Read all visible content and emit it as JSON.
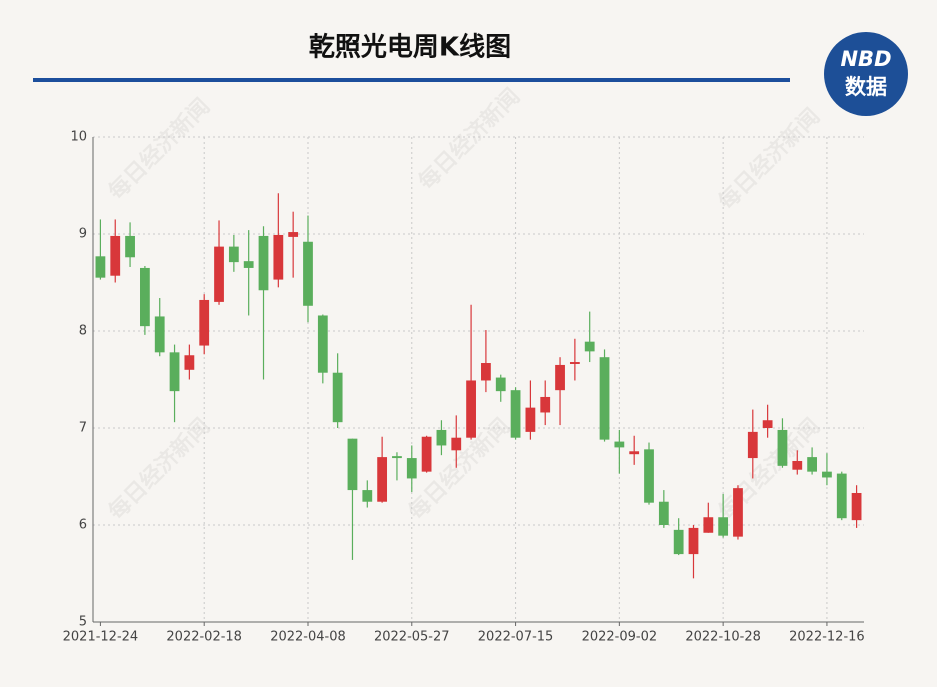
{
  "header": {
    "title": "乾照光电周K线图",
    "logo_top": "NBD",
    "logo_bottom": "数据",
    "watermark": "每日经济新闻"
  },
  "chart_data": {
    "type": "candlestick",
    "categories": [
      "2021-12-24",
      null,
      null,
      null,
      null,
      null,
      null,
      "2022-02-18",
      null,
      null,
      null,
      null,
      null,
      null,
      "2022-04-08",
      null,
      null,
      null,
      null,
      null,
      null,
      "2022-05-27",
      null,
      null,
      null,
      null,
      null,
      null,
      "2022-07-15",
      null,
      null,
      null,
      null,
      null,
      null,
      "2022-09-02",
      null,
      null,
      null,
      null,
      null,
      null,
      "2022-10-28",
      null,
      null,
      null,
      null,
      null,
      null,
      "2022-12-16",
      null,
      null
    ],
    "open": [
      8.77,
      8.57,
      8.98,
      8.65,
      8.15,
      7.78,
      7.6,
      7.85,
      8.3,
      8.87,
      8.72,
      8.98,
      8.53,
      8.97,
      8.92,
      8.16,
      7.57,
      6.89,
      6.36,
      6.24,
      6.71,
      6.69,
      6.55,
      6.98,
      6.77,
      6.9,
      7.49,
      7.52,
      7.39,
      6.96,
      7.16,
      7.39,
      7.66,
      7.89,
      7.73,
      6.86,
      6.73,
      6.78,
      6.24,
      5.95,
      5.7,
      5.92,
      6.08,
      5.88,
      6.69,
      7.0,
      6.98,
      6.57,
      6.7,
      6.55,
      6.53,
      6.05
    ],
    "high": [
      9.15,
      9.15,
      9.12,
      8.67,
      8.34,
      7.86,
      7.86,
      8.38,
      9.14,
      8.99,
      9.04,
      9.08,
      9.42,
      9.23,
      9.19,
      8.17,
      7.77,
      6.89,
      6.46,
      6.91,
      6.75,
      6.82,
      6.92,
      7.08,
      7.13,
      8.27,
      8.01,
      7.55,
      7.42,
      7.49,
      7.49,
      7.73,
      7.92,
      8.2,
      7.81,
      6.98,
      6.92,
      6.85,
      6.36,
      6.07,
      6.0,
      6.23,
      6.32,
      6.41,
      7.19,
      7.24,
      7.1,
      6.77,
      6.8,
      6.74,
      6.55,
      6.41
    ],
    "low": [
      8.53,
      8.5,
      8.66,
      7.96,
      7.74,
      7.06,
      7.5,
      7.76,
      8.27,
      8.61,
      8.16,
      7.5,
      8.45,
      8.55,
      8.09,
      7.46,
      7.0,
      5.64,
      6.18,
      6.23,
      6.46,
      6.34,
      6.54,
      6.72,
      6.59,
      6.88,
      7.37,
      7.27,
      6.88,
      6.88,
      7.03,
      7.03,
      7.49,
      7.68,
      6.86,
      6.53,
      6.62,
      6.21,
      5.97,
      5.69,
      5.45,
      5.92,
      5.87,
      5.85,
      6.48,
      6.9,
      6.59,
      6.52,
      6.52,
      6.41,
      6.05,
      5.97
    ],
    "close": [
      8.55,
      8.98,
      8.76,
      8.05,
      7.78,
      7.38,
      7.75,
      8.32,
      8.87,
      8.71,
      8.65,
      8.42,
      8.99,
      9.02,
      8.26,
      7.57,
      7.06,
      6.36,
      6.24,
      6.7,
      6.69,
      6.48,
      6.91,
      6.82,
      6.9,
      7.49,
      7.67,
      7.38,
      6.9,
      7.21,
      7.32,
      7.65,
      7.68,
      7.79,
      6.88,
      6.8,
      6.76,
      6.23,
      6.0,
      5.7,
      5.97,
      6.08,
      5.89,
      6.38,
      6.96,
      7.08,
      6.61,
      6.66,
      6.55,
      6.49,
      6.07,
      6.33
    ],
    "up_color": "#d8373a",
    "down_color": "#5aae5c",
    "ylim": [
      5,
      10
    ],
    "yticks": [
      5,
      6,
      7,
      8,
      9,
      10
    ],
    "grid": true
  }
}
